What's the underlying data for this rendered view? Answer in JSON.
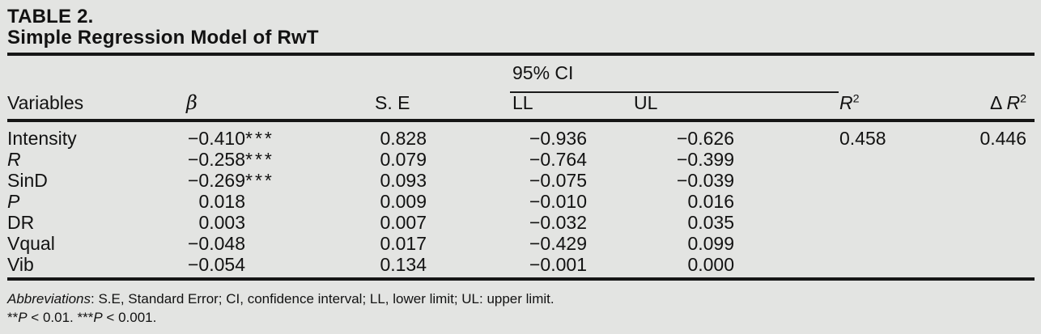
{
  "table": {
    "label": "TABLE 2.",
    "title": "Simple Regression Model of RwT",
    "spanner": "95% CI",
    "header": {
      "variables": "Variables",
      "beta": "β",
      "se": "S. E",
      "ll": "LL",
      "ul": "UL",
      "r2_base": "R",
      "r2_sup": "2",
      "delta": "Δ ",
      "dr2_base": "R",
      "dr2_sup": "2"
    },
    "rows": [
      {
        "variable": "Intensity",
        "beta": "−0.410",
        "stars": "***",
        "se": "0.828",
        "ll": "−0.936",
        "ul": "−0.626",
        "r2": "0.458",
        "dr2": "0.446"
      },
      {
        "variable": "R",
        "beta": "−0.258",
        "stars": "***",
        "se": "0.079",
        "ll": "−0.764",
        "ul": "−0.399",
        "r2": "",
        "dr2": ""
      },
      {
        "variable": "SinD",
        "beta": "−0.269",
        "stars": "***",
        "se": "0.093",
        "ll": "−0.075",
        "ul": "−0.039",
        "r2": "",
        "dr2": ""
      },
      {
        "variable": "P",
        "beta": "0.018",
        "stars": "",
        "se": "0.009",
        "ll": "−0.010",
        "ul": "0.016",
        "r2": "",
        "dr2": ""
      },
      {
        "variable": "DR",
        "beta": "0.003",
        "stars": "",
        "se": "0.007",
        "ll": "−0.032",
        "ul": "0.035",
        "r2": "",
        "dr2": ""
      },
      {
        "variable": "Vqual",
        "beta": "−0.048",
        "stars": "",
        "se": "0.017",
        "ll": "−0.429",
        "ul": "0.099",
        "r2": "",
        "dr2": ""
      },
      {
        "variable": "Vib",
        "beta": "−0.054",
        "stars": "",
        "se": "0.134",
        "ll": "−0.001",
        "ul": "0.000",
        "r2": "",
        "dr2": ""
      }
    ],
    "footnotes": {
      "abbr_label": "Abbreviations",
      "abbr_rest": ": S.E, Standard Error; CI, confidence interval; LL, lower limit; UL: upper limit.",
      "sig_stars1": "**",
      "sig_p1": "P",
      "sig_seg1": " < 0.01. ",
      "sig_stars2": "***",
      "sig_p2": "P",
      "sig_seg2": " < 0.001."
    },
    "colors": {
      "background": "#e3e4e2",
      "text": "#121212",
      "rule": "#161616"
    }
  }
}
